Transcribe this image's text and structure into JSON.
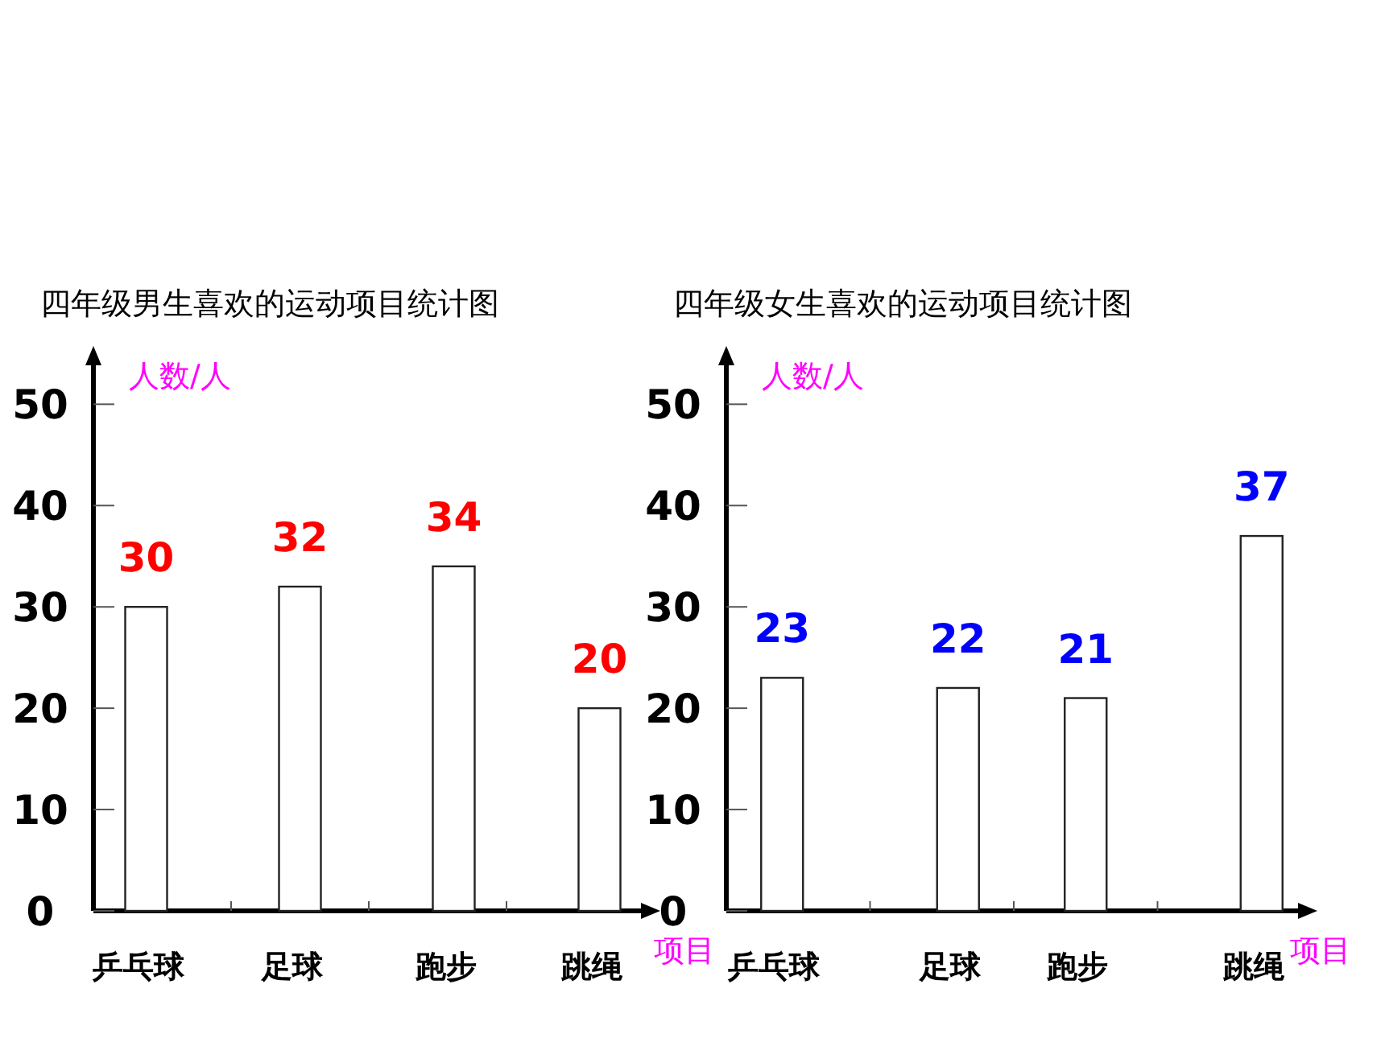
{
  "chart_data": [
    {
      "type": "bar",
      "title": "四年级男生喜欢的运动项目统计图",
      "xlabel": "项目",
      "ylabel": "人数/人",
      "categories": [
        "乒乓球",
        "足球",
        "跑步",
        "跳绳"
      ],
      "values": [
        30,
        32,
        34,
        20
      ],
      "color": "#ffffff",
      "ylim": [
        0,
        54
      ],
      "yticks": [
        0,
        10,
        20,
        30,
        40,
        50
      ],
      "data_labels": true
    },
    {
      "type": "bar",
      "title": "四年级女生喜欢的运动项目统计图",
      "xlabel": "项目",
      "ylabel": "人数/人",
      "categories": [
        "乒乓球",
        "足球",
        "跑步",
        "跳绳"
      ],
      "values": [
        23,
        22,
        21,
        37
      ],
      "color": "#ffffff",
      "ylim": [
        0,
        54
      ],
      "yticks": [
        0,
        10,
        20,
        30,
        40,
        50
      ],
      "data_labels": true
    }
  ]
}
